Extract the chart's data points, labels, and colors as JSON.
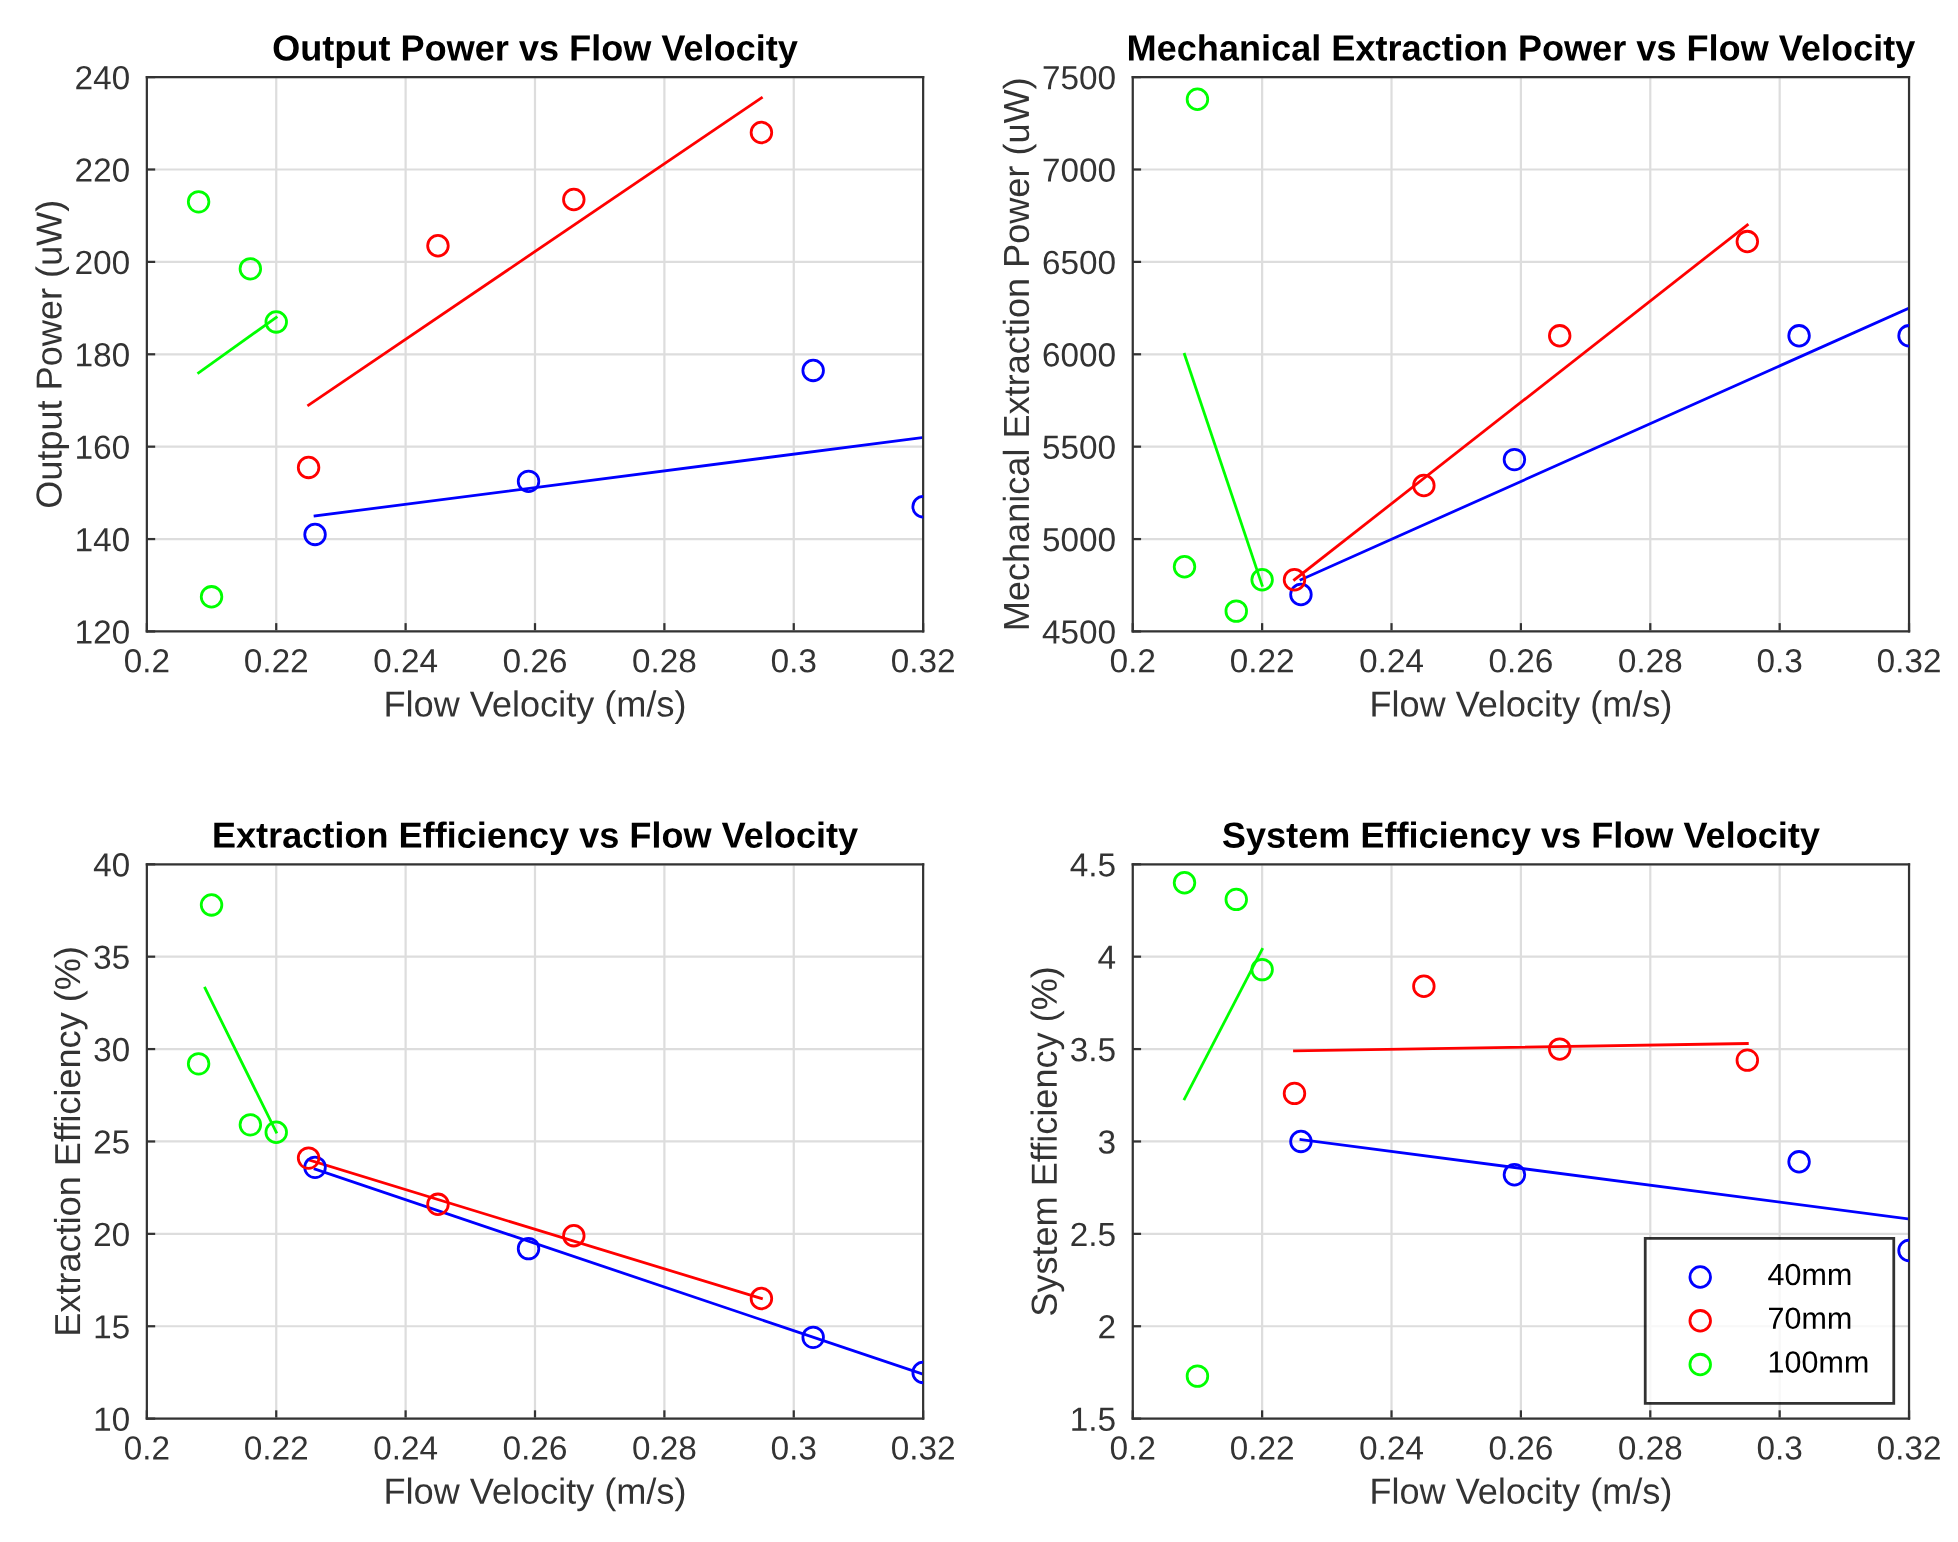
{
  "chart_data": [
    {
      "type": "scatter",
      "title": "Output Power vs Flow Velocity",
      "xlabel": "Flow Velocity (m/s)",
      "ylabel": "Output Power (uW)",
      "xlim": [
        0.2,
        0.32
      ],
      "xticks": [
        0.2,
        0.22,
        0.24,
        0.26,
        0.28,
        0.3,
        0.32
      ],
      "ylim": [
        120,
        240
      ],
      "yticks": [
        120,
        140,
        160,
        180,
        200,
        220,
        240
      ],
      "grid": true,
      "series": [
        {
          "marker": "circle",
          "color": "#0000ff",
          "x": [
            0.226,
            0.259,
            0.303,
            0.32
          ],
          "values": [
            141,
            152.5,
            176.5,
            147
          ]
        },
        {
          "marker": "circle",
          "color": "#ff0000",
          "x": [
            0.225,
            0.245,
            0.266,
            0.295
          ],
          "values": [
            155.5,
            203.5,
            213.5,
            228
          ]
        },
        {
          "marker": "circle",
          "color": "#00ff00",
          "x": [
            0.208,
            0.21,
            0.216,
            0.22
          ],
          "values": [
            213,
            127.5,
            198.5,
            187
          ]
        },
        {
          "type": "line",
          "color": "#0000ff",
          "x": [
            0.226,
            0.32
          ],
          "values": [
            145,
            162
          ]
        },
        {
          "type": "line",
          "color": "#ff0000",
          "x": [
            0.225,
            0.295
          ],
          "values": [
            169,
            235.5
          ]
        },
        {
          "type": "line",
          "color": "#00ff00",
          "x": [
            0.208,
            0.22
          ],
          "values": [
            176,
            188
          ]
        }
      ]
    },
    {
      "type": "scatter",
      "title": "Mechanical Extraction Power vs Flow Velocity",
      "xlabel": "Flow Velocity (m/s)",
      "ylabel": "Mechanical Extraction Power (uW)",
      "xlim": [
        0.2,
        0.32
      ],
      "xticks": [
        0.2,
        0.22,
        0.24,
        0.26,
        0.28,
        0.3,
        0.32
      ],
      "ylim": [
        4500,
        7500
      ],
      "yticks": [
        4500,
        5000,
        5500,
        6000,
        6500,
        7000,
        7500
      ],
      "grid": true,
      "series": [
        {
          "marker": "circle",
          "color": "#0000ff",
          "x": [
            0.226,
            0.259,
            0.303,
            0.32
          ],
          "values": [
            4700,
            5430,
            6100,
            6100
          ]
        },
        {
          "marker": "circle",
          "color": "#ff0000",
          "x": [
            0.225,
            0.245,
            0.266,
            0.295
          ],
          "values": [
            4780,
            5290,
            6100,
            6610
          ]
        },
        {
          "marker": "circle",
          "color": "#00ff00",
          "x": [
            0.208,
            0.21,
            0.216,
            0.22
          ],
          "values": [
            4850,
            7380,
            4610,
            4780
          ]
        },
        {
          "type": "line",
          "color": "#0000ff",
          "x": [
            0.226,
            0.32
          ],
          "values": [
            4780,
            6250
          ]
        },
        {
          "type": "line",
          "color": "#ff0000",
          "x": [
            0.225,
            0.295
          ],
          "values": [
            4780,
            6700
          ]
        },
        {
          "type": "line",
          "color": "#00ff00",
          "x": [
            0.208,
            0.22
          ],
          "values": [
            6000,
            4750
          ]
        }
      ]
    },
    {
      "type": "scatter",
      "title": "Extraction Efficiency vs Flow Velocity",
      "xlabel": "Flow Velocity (m/s)",
      "ylabel": "Extraction Efficiency (%)",
      "xlim": [
        0.2,
        0.32
      ],
      "xticks": [
        0.2,
        0.22,
        0.24,
        0.26,
        0.28,
        0.3,
        0.32
      ],
      "ylim": [
        10,
        40
      ],
      "yticks": [
        10,
        15,
        20,
        25,
        30,
        35,
        40
      ],
      "grid": true,
      "series": [
        {
          "marker": "circle",
          "color": "#0000ff",
          "x": [
            0.226,
            0.259,
            0.303,
            0.32
          ],
          "values": [
            23.6,
            19.2,
            14.4,
            12.5
          ]
        },
        {
          "marker": "circle",
          "color": "#ff0000",
          "x": [
            0.225,
            0.245,
            0.266,
            0.295
          ],
          "values": [
            24.1,
            21.6,
            19.9,
            16.5
          ]
        },
        {
          "marker": "circle",
          "color": "#00ff00",
          "x": [
            0.208,
            0.21,
            0.216,
            0.22
          ],
          "values": [
            29.2,
            37.8,
            25.9,
            25.5
          ]
        },
        {
          "type": "line",
          "color": "#0000ff",
          "x": [
            0.226,
            0.32
          ],
          "values": [
            23.5,
            12.4
          ]
        },
        {
          "type": "line",
          "color": "#ff0000",
          "x": [
            0.225,
            0.295
          ],
          "values": [
            24,
            16.5
          ]
        },
        {
          "type": "line",
          "color": "#00ff00",
          "x": [
            0.209,
            0.22
          ],
          "values": [
            33.3,
            25.5
          ]
        }
      ]
    },
    {
      "type": "scatter",
      "title": "System Efficiency vs Flow Velocity",
      "xlabel": "Flow Velocity (m/s)",
      "ylabel": "System Efficiency (%)",
      "xlim": [
        0.2,
        0.32
      ],
      "xticks": [
        0.2,
        0.22,
        0.24,
        0.26,
        0.28,
        0.3,
        0.32
      ],
      "ylim": [
        1.5,
        4.5
      ],
      "yticks": [
        1.5,
        2,
        2.5,
        3,
        3.5,
        4,
        4.5
      ],
      "grid": true,
      "legend": "bottom right",
      "series": [
        {
          "marker": "circle",
          "name": "40mm",
          "color": "#0000ff",
          "x": [
            0.226,
            0.259,
            0.303,
            0.32
          ],
          "values": [
            3.0,
            2.82,
            2.89,
            2.41
          ]
        },
        {
          "marker": "circle",
          "name": "70mm",
          "color": "#ff0000",
          "x": [
            0.225,
            0.245,
            0.266,
            0.295
          ],
          "values": [
            3.26,
            3.84,
            3.5,
            3.44
          ]
        },
        {
          "marker": "circle",
          "name": "100mm",
          "color": "#00ff00",
          "x": [
            0.208,
            0.21,
            0.216,
            0.22
          ],
          "values": [
            4.4,
            1.73,
            4.31,
            3.93
          ]
        },
        {
          "type": "line",
          "color": "#0000ff",
          "x": [
            0.226,
            0.32
          ],
          "values": [
            3.01,
            2.58
          ]
        },
        {
          "type": "line",
          "color": "#ff0000",
          "x": [
            0.225,
            0.295
          ],
          "values": [
            3.49,
            3.53
          ]
        },
        {
          "type": "line",
          "color": "#00ff00",
          "x": [
            0.208,
            0.22
          ],
          "values": [
            3.23,
            4.04
          ]
        }
      ]
    }
  ]
}
